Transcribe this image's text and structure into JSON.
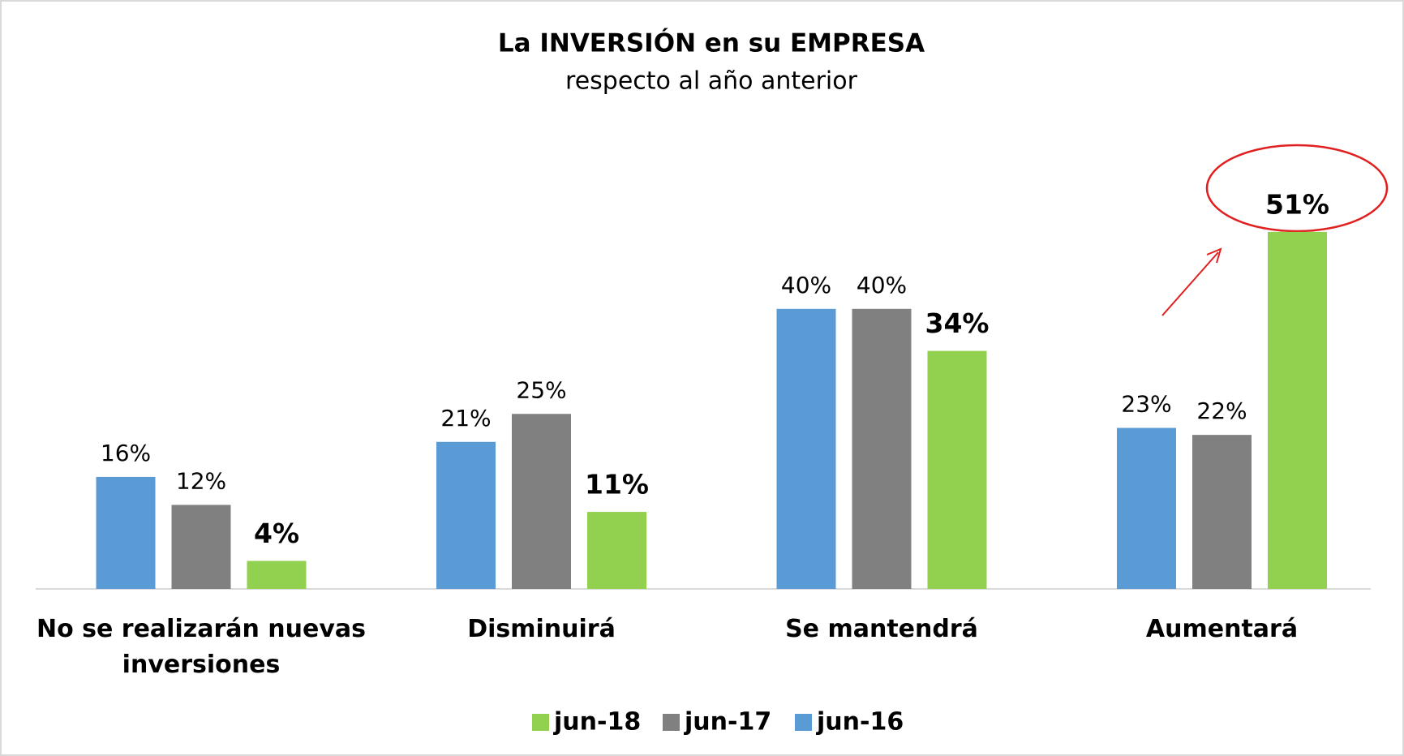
{
  "chart_data": {
    "type": "bar",
    "title": "La INVERSIÓN en su EMPRESA",
    "subtitle": "respecto al año anterior",
    "categories": [
      "No se realizarán nuevas inversiones",
      "Disminuirá",
      "Se mantendrá",
      "Aumentará"
    ],
    "series": [
      {
        "name": "jun-16",
        "color": "#5b9bd5",
        "values": [
          16,
          21,
          40,
          23
        ],
        "value_labels": [
          "16%",
          "21%",
          "40%",
          "23%"
        ]
      },
      {
        "name": "jun-17",
        "color": "#808080",
        "values": [
          12,
          25,
          40,
          22
        ],
        "value_labels": [
          "12%",
          "25%",
          "40%",
          "22%"
        ]
      },
      {
        "name": "jun-18",
        "color": "#92d050",
        "values": [
          4,
          11,
          34,
          51
        ],
        "value_labels": [
          "4%",
          "11%",
          "34%",
          "51%"
        ]
      }
    ],
    "legend": "bottom"
  }
}
